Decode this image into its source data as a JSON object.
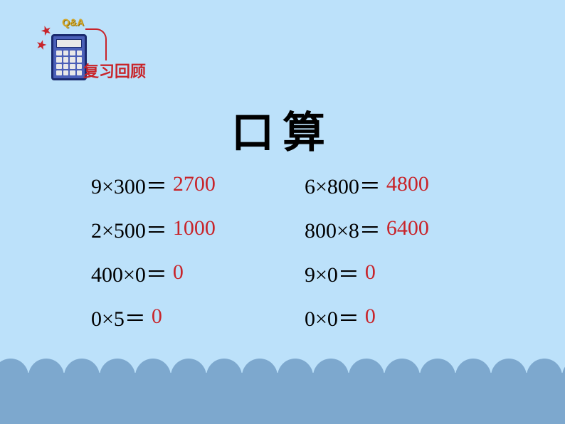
{
  "icon": {
    "qa_text": "Q&A",
    "review_label": "复习回顾"
  },
  "title": "口算",
  "problems": [
    {
      "expression": "9×300＝",
      "answer": "2700",
      "answer_color": "#c8242a"
    },
    {
      "expression": "6×800＝",
      "answer": "4800",
      "answer_color": "#c8242a"
    },
    {
      "expression": "2×500＝",
      "answer": "1000",
      "answer_color": "#c8242a"
    },
    {
      "expression": "800×8＝",
      "answer": "6400",
      "answer_color": "#c8242a"
    },
    {
      "expression": "400×0＝",
      "answer": "0",
      "answer_color": "#c8242a"
    },
    {
      "expression": "9×0＝",
      "answer": "0",
      "answer_color": "#c8242a"
    },
    {
      "expression": "0×5＝",
      "answer": "0",
      "answer_color": "#c8242a"
    },
    {
      "expression": "0×0＝",
      "answer": "0",
      "answer_color": "#c8242a"
    }
  ],
  "styling": {
    "background_color": "#bce1fa",
    "bottom_band_color": "#7da8ce",
    "title_color": "#000000",
    "title_fontsize": 60,
    "expression_color": "#000000",
    "expression_fontsize": 30,
    "answer_color": "#c8242a",
    "review_label_color": "#c8242a",
    "calculator_color": "#4a5fb8",
    "calculator_border": "#1a2a6e",
    "qa_color": "#d4a82a",
    "star_color": "#c8242a",
    "scallop_count": 17,
    "scallop_width": 50
  }
}
